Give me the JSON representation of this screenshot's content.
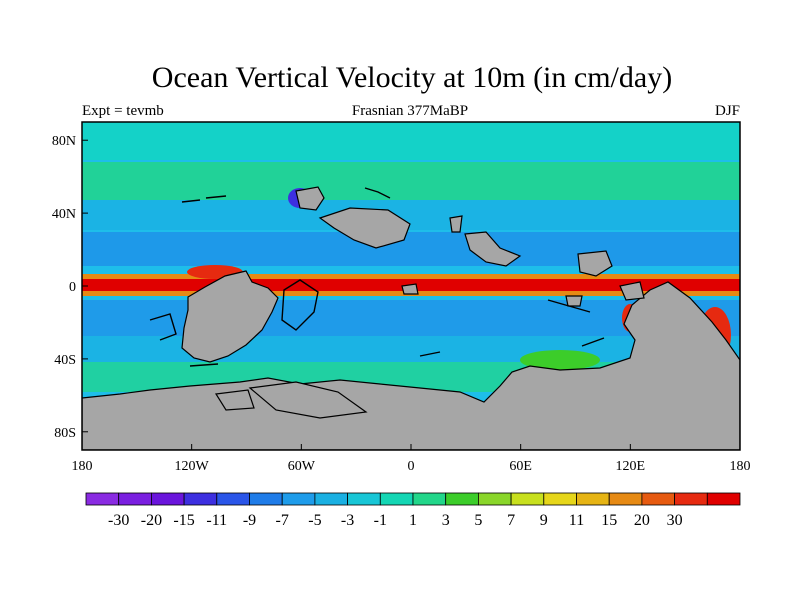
{
  "title": "Ocean Vertical Velocity at 10m (in cm/day)",
  "left_label": "Expt = tevmb",
  "center_label": "Frasnian 377MaBP",
  "right_label": "DJF",
  "map": {
    "lon_range": [
      -180,
      180
    ],
    "lat_range": [
      -90,
      90
    ],
    "x_ticks": [
      {
        "value": -180,
        "label": "180"
      },
      {
        "value": -120,
        "label": "120W"
      },
      {
        "value": -60,
        "label": "60W"
      },
      {
        "value": 0,
        "label": "0"
      },
      {
        "value": 60,
        "label": "60E"
      },
      {
        "value": 120,
        "label": "120E"
      },
      {
        "value": 180,
        "label": "180"
      }
    ],
    "y_ticks": [
      {
        "value": 80,
        "label": "80N"
      },
      {
        "value": 40,
        "label": "40N"
      },
      {
        "value": 0,
        "label": "0"
      },
      {
        "value": -40,
        "label": "40S"
      },
      {
        "value": -80,
        "label": "80S"
      }
    ],
    "ocean_color": "#1ebeea",
    "land_color": "#a6a6a6"
  },
  "colorbar": {
    "colors": [
      "#8a2be2",
      "#7a1fe0",
      "#6a15dc",
      "#3d2fe0",
      "#2a55e8",
      "#1f7ce8",
      "#1e9cea",
      "#1ab0e2",
      "#18c6d6",
      "#14d6b4",
      "#22d68a",
      "#3ccd2a",
      "#8ad62a",
      "#c8e01e",
      "#e6d61a",
      "#e6b414",
      "#e68a14",
      "#e65a10",
      "#e62a10",
      "#e00000"
    ],
    "labels": [
      "-30",
      "-20",
      "-15",
      "-11",
      "-9",
      "-7",
      "-5",
      "-3",
      "-1",
      "1",
      "3",
      "5",
      "7",
      "9",
      "11",
      "15",
      "20",
      "30"
    ]
  }
}
